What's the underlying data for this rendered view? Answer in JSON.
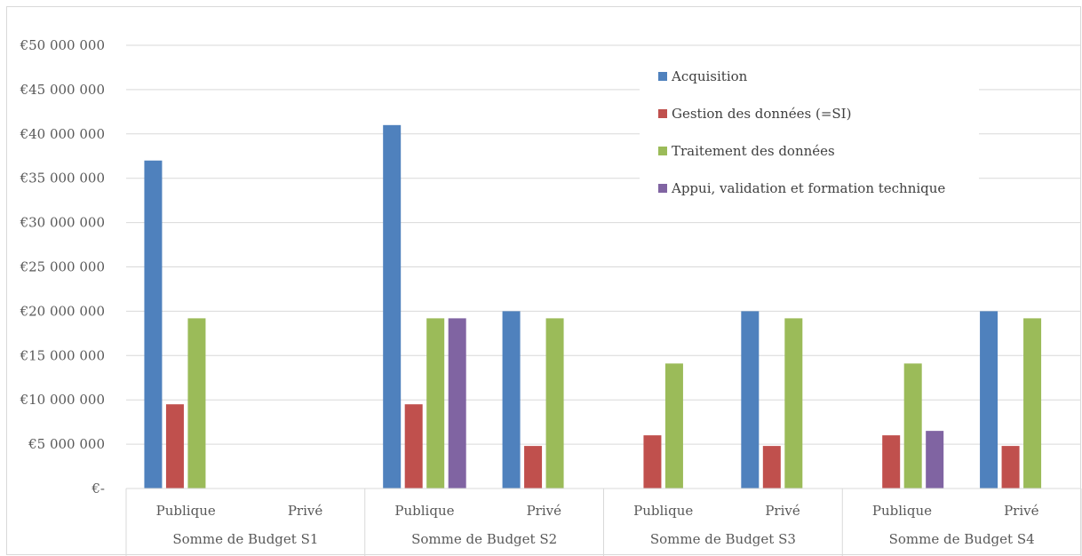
{
  "chart_data": {
    "type": "bar",
    "title": "",
    "xlabel": "",
    "ylabel": "",
    "ylim": [
      0,
      50000000
    ],
    "yticks": [
      0,
      5000000,
      10000000,
      15000000,
      20000000,
      25000000,
      30000000,
      35000000,
      40000000,
      45000000,
      50000000
    ],
    "ytick_labels": [
      "€-",
      "€5 000 000",
      "€10 000 000",
      "€15 000 000",
      "€20 000 000",
      "€25 000 000",
      "€30 000 000",
      "€35 000 000",
      "€40 000 000",
      "€45 000 000",
      "€50 000 000"
    ],
    "grid": true,
    "legend_position": "top-right",
    "groups": [
      "Somme de Budget S1",
      "Somme de Budget S2",
      "Somme de Budget S3",
      "Somme de Budget S4"
    ],
    "subcategories": [
      "Publique",
      "Privé"
    ],
    "categories": [
      "Somme de Budget S1 - Publique",
      "Somme de Budget S1 - Privé",
      "Somme de Budget S2 - Publique",
      "Somme de Budget S2 - Privé",
      "Somme de Budget S3 - Publique",
      "Somme de Budget S3 - Privé",
      "Somme de Budget S4 - Publique",
      "Somme de Budget S4 - Privé"
    ],
    "series": [
      {
        "name": "Acquisition",
        "color": "#4f81bd",
        "values": [
          37000000,
          0,
          41000000,
          20000000,
          0,
          20000000,
          0,
          20000000
        ]
      },
      {
        "name": "Gestion des données (=SI)",
        "color": "#c0504d",
        "values": [
          9500000,
          0,
          9500000,
          4800000,
          6000000,
          4800000,
          6000000,
          4800000
        ]
      },
      {
        "name": "Traitement des données",
        "color": "#9bbb59",
        "values": [
          19200000,
          0,
          19200000,
          19200000,
          14100000,
          19200000,
          14100000,
          19200000
        ]
      },
      {
        "name": "Appui, validation et formation technique",
        "color": "#8064a2",
        "values": [
          0,
          0,
          19200000,
          0,
          0,
          0,
          6500000,
          0
        ]
      }
    ]
  }
}
